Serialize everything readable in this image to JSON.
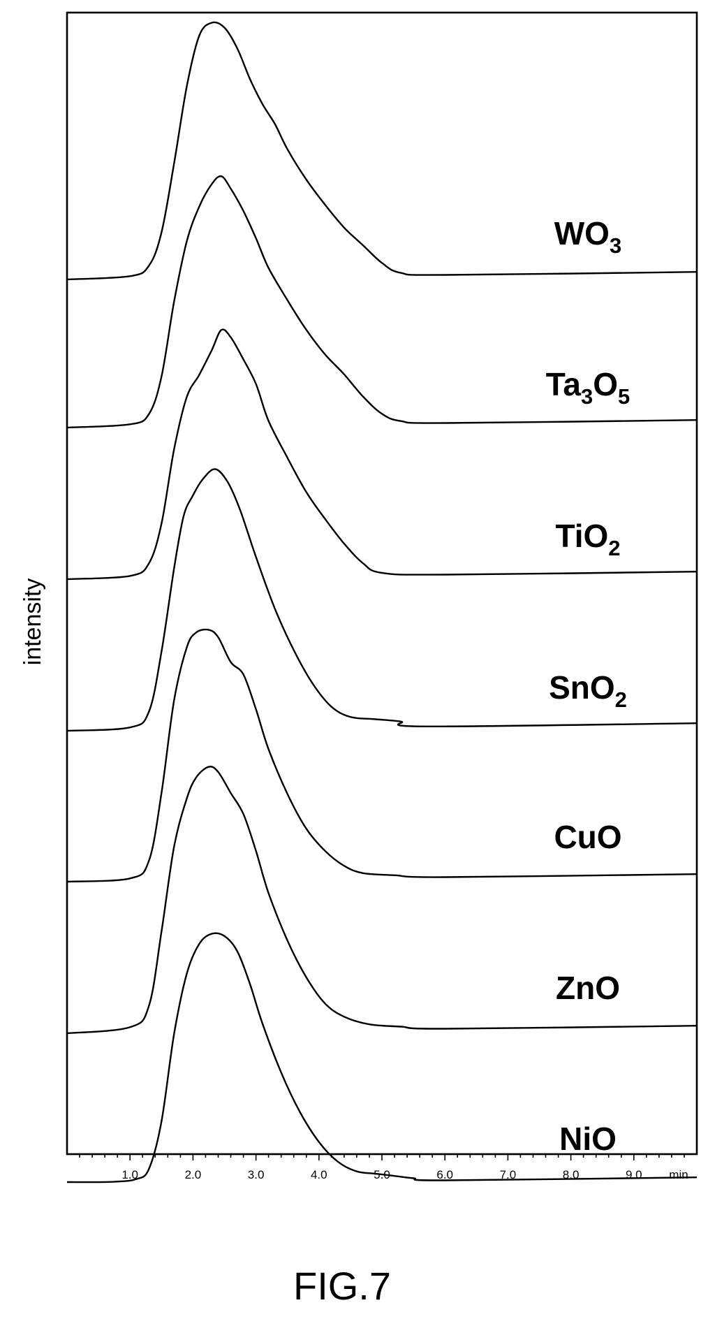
{
  "chart_data": {
    "type": "line",
    "layout": "stacked-offset",
    "ylabel": "intensity",
    "x_unit": "min",
    "xlim": [
      0,
      10
    ],
    "x_ticks": [
      "1.0",
      "2.0",
      "3.0",
      "4.0",
      "5.0",
      "6.0",
      "7.0",
      "8.0",
      "9.0"
    ],
    "grid": false,
    "series": [
      {
        "name": "WO",
        "sub": "3",
        "name2": "",
        "sub2": "",
        "points": [
          [
            0.0,
            0.0
          ],
          [
            1.0,
            0.01
          ],
          [
            1.3,
            0.05
          ],
          [
            1.5,
            0.18
          ],
          [
            1.7,
            0.45
          ],
          [
            1.9,
            0.75
          ],
          [
            2.1,
            0.95
          ],
          [
            2.3,
            1.0
          ],
          [
            2.5,
            0.98
          ],
          [
            2.7,
            0.9
          ],
          [
            2.9,
            0.78
          ],
          [
            3.1,
            0.68
          ],
          [
            3.3,
            0.6
          ],
          [
            3.5,
            0.5
          ],
          [
            3.8,
            0.38
          ],
          [
            4.1,
            0.28
          ],
          [
            4.4,
            0.19
          ],
          [
            4.7,
            0.12
          ],
          [
            5.0,
            0.05
          ],
          [
            5.3,
            0.01
          ],
          [
            6.0,
            0.0
          ],
          [
            10.0,
            0.0
          ]
        ]
      },
      {
        "name": "Ta",
        "sub": "3",
        "name2": "O",
        "sub2": "5",
        "points": [
          [
            0.0,
            0.0
          ],
          [
            1.0,
            0.01
          ],
          [
            1.3,
            0.05
          ],
          [
            1.5,
            0.2
          ],
          [
            1.7,
            0.5
          ],
          [
            1.9,
            0.74
          ],
          [
            2.1,
            0.88
          ],
          [
            2.3,
            0.97
          ],
          [
            2.45,
            1.0
          ],
          [
            2.6,
            0.95
          ],
          [
            2.8,
            0.86
          ],
          [
            3.0,
            0.75
          ],
          [
            3.2,
            0.63
          ],
          [
            3.5,
            0.5
          ],
          [
            3.8,
            0.38
          ],
          [
            4.1,
            0.28
          ],
          [
            4.4,
            0.2
          ],
          [
            4.7,
            0.11
          ],
          [
            5.0,
            0.04
          ],
          [
            5.3,
            0.01
          ],
          [
            6.0,
            0.0
          ],
          [
            10.0,
            0.0
          ]
        ]
      },
      {
        "name": "TiO",
        "sub": "2",
        "name2": "",
        "sub2": "",
        "points": [
          [
            0.0,
            0.0
          ],
          [
            1.0,
            0.01
          ],
          [
            1.3,
            0.06
          ],
          [
            1.5,
            0.22
          ],
          [
            1.7,
            0.52
          ],
          [
            1.9,
            0.73
          ],
          [
            2.1,
            0.82
          ],
          [
            2.3,
            0.92
          ],
          [
            2.45,
            1.0
          ],
          [
            2.6,
            0.97
          ],
          [
            2.8,
            0.88
          ],
          [
            3.0,
            0.78
          ],
          [
            3.2,
            0.63
          ],
          [
            3.5,
            0.48
          ],
          [
            3.8,
            0.34
          ],
          [
            4.1,
            0.23
          ],
          [
            4.4,
            0.13
          ],
          [
            4.7,
            0.05
          ],
          [
            5.0,
            0.01
          ],
          [
            6.0,
            0.0
          ],
          [
            10.0,
            0.0
          ]
        ]
      },
      {
        "name": "SnO",
        "sub": "2",
        "name2": "",
        "sub2": "",
        "points": [
          [
            0.0,
            0.0
          ],
          [
            1.0,
            0.01
          ],
          [
            1.3,
            0.07
          ],
          [
            1.5,
            0.3
          ],
          [
            1.7,
            0.62
          ],
          [
            1.85,
            0.82
          ],
          [
            2.0,
            0.9
          ],
          [
            2.15,
            0.96
          ],
          [
            2.35,
            1.0
          ],
          [
            2.55,
            0.95
          ],
          [
            2.75,
            0.84
          ],
          [
            3.0,
            0.66
          ],
          [
            3.3,
            0.46
          ],
          [
            3.6,
            0.3
          ],
          [
            3.9,
            0.17
          ],
          [
            4.2,
            0.08
          ],
          [
            4.5,
            0.04
          ],
          [
            4.9,
            0.03
          ],
          [
            5.3,
            0.02
          ],
          [
            5.7,
            0.0
          ],
          [
            10.0,
            0.0
          ]
        ]
      },
      {
        "name": "CuO",
        "sub": "",
        "name2": "",
        "sub2": "",
        "points": [
          [
            0.0,
            0.0
          ],
          [
            1.0,
            0.01
          ],
          [
            1.3,
            0.08
          ],
          [
            1.5,
            0.35
          ],
          [
            1.7,
            0.72
          ],
          [
            1.9,
            0.93
          ],
          [
            2.05,
            0.99
          ],
          [
            2.25,
            1.0
          ],
          [
            2.4,
            0.97
          ],
          [
            2.6,
            0.87
          ],
          [
            2.8,
            0.82
          ],
          [
            3.0,
            0.68
          ],
          [
            3.2,
            0.52
          ],
          [
            3.5,
            0.34
          ],
          [
            3.8,
            0.2
          ],
          [
            4.1,
            0.11
          ],
          [
            4.4,
            0.05
          ],
          [
            4.7,
            0.02
          ],
          [
            5.2,
            0.01
          ],
          [
            6.0,
            0.0
          ],
          [
            10.0,
            0.0
          ]
        ]
      },
      {
        "name": "ZnO",
        "sub": "",
        "name2": "",
        "sub2": "",
        "points": [
          [
            0.0,
            0.0
          ],
          [
            1.0,
            0.02
          ],
          [
            1.3,
            0.1
          ],
          [
            1.5,
            0.38
          ],
          [
            1.7,
            0.7
          ],
          [
            1.9,
            0.88
          ],
          [
            2.05,
            0.96
          ],
          [
            2.25,
            1.0
          ],
          [
            2.4,
            0.98
          ],
          [
            2.6,
            0.9
          ],
          [
            2.8,
            0.82
          ],
          [
            3.0,
            0.68
          ],
          [
            3.2,
            0.52
          ],
          [
            3.5,
            0.34
          ],
          [
            3.8,
            0.2
          ],
          [
            4.1,
            0.1
          ],
          [
            4.4,
            0.05
          ],
          [
            4.8,
            0.02
          ],
          [
            5.3,
            0.01
          ],
          [
            6.0,
            0.0
          ],
          [
            10.0,
            0.0
          ]
        ]
      },
      {
        "name": "NiO",
        "sub": "",
        "name2": "",
        "sub2": "",
        "points": [
          [
            0.0,
            0.0
          ],
          [
            0.7,
            0.01
          ],
          [
            1.1,
            0.02
          ],
          [
            1.3,
            0.06
          ],
          [
            1.5,
            0.25
          ],
          [
            1.7,
            0.6
          ],
          [
            1.9,
            0.84
          ],
          [
            2.1,
            0.96
          ],
          [
            2.3,
            1.0
          ],
          [
            2.5,
            0.99
          ],
          [
            2.7,
            0.93
          ],
          [
            2.9,
            0.8
          ],
          [
            3.1,
            0.64
          ],
          [
            3.4,
            0.44
          ],
          [
            3.7,
            0.28
          ],
          [
            4.0,
            0.16
          ],
          [
            4.3,
            0.08
          ],
          [
            4.6,
            0.04
          ],
          [
            4.9,
            0.03
          ],
          [
            5.2,
            0.02
          ],
          [
            5.5,
            0.01
          ],
          [
            6.0,
            0.0
          ],
          [
            10.0,
            0.0
          ]
        ]
      }
    ]
  },
  "caption": "FIG.7"
}
